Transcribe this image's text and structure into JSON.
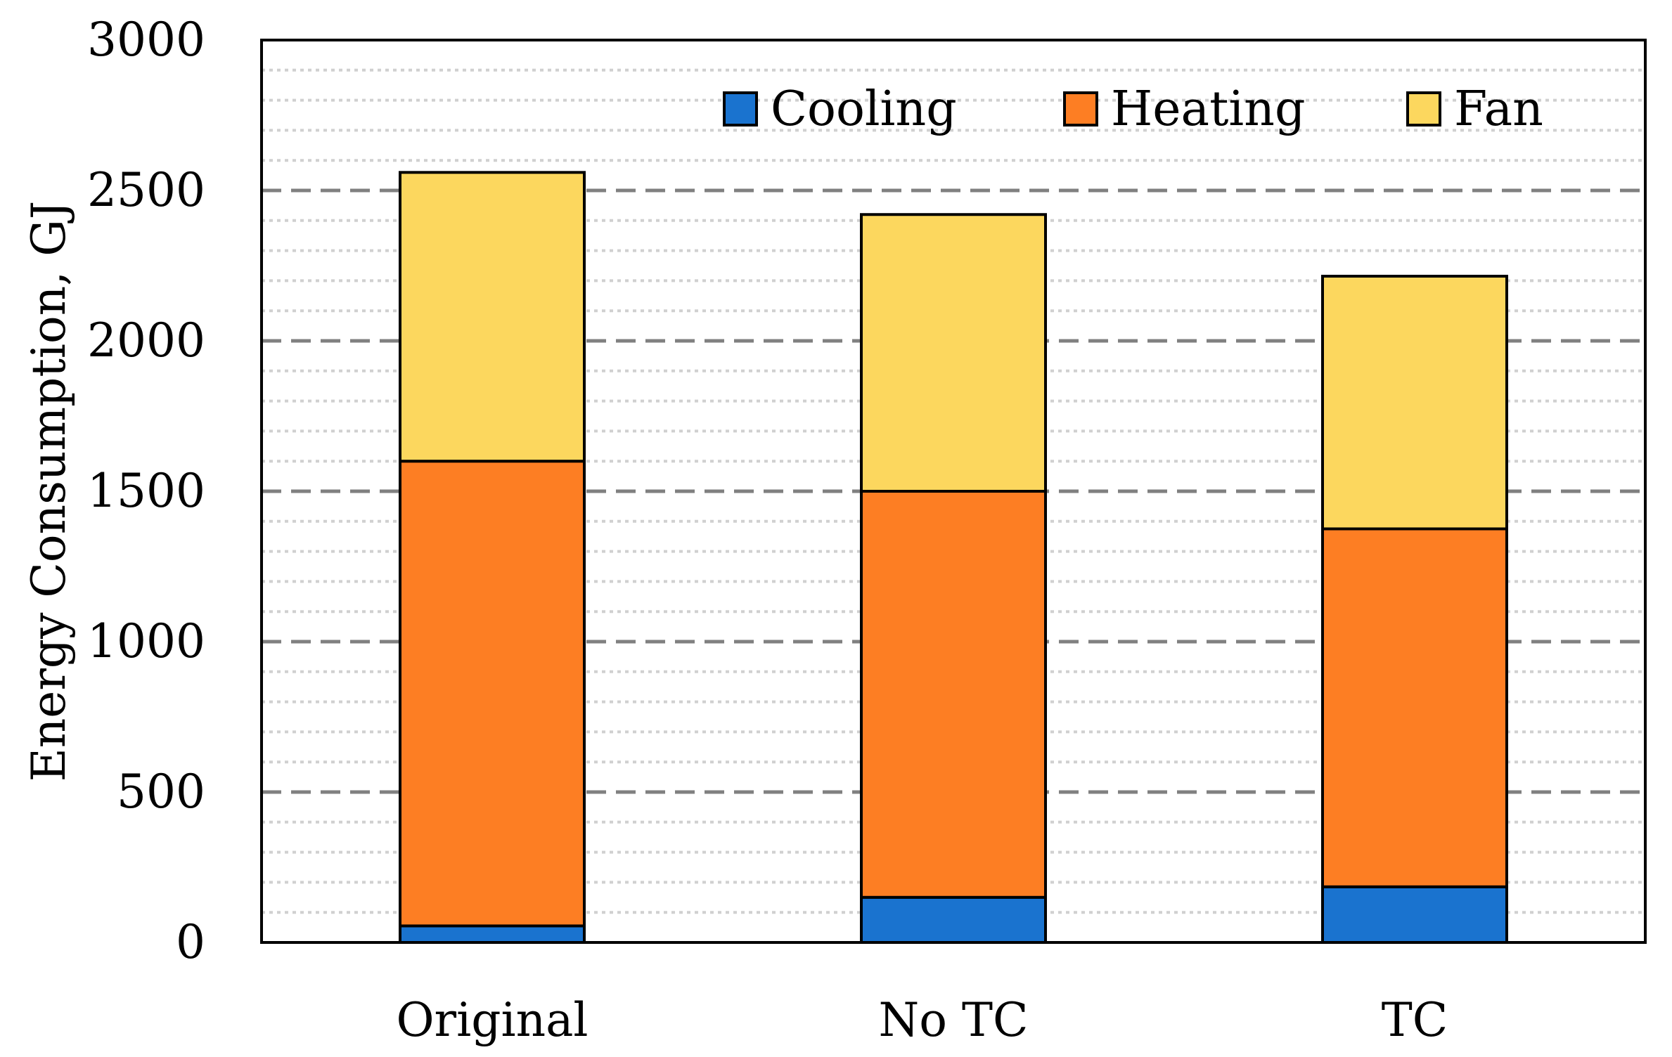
{
  "chart_data": {
    "type": "bar",
    "stacked": true,
    "categories": [
      "Original",
      "No TC",
      "TC"
    ],
    "series": [
      {
        "name": "Cooling",
        "color": "#1a73cf",
        "values": [
          55,
          150,
          185
        ]
      },
      {
        "name": "Heating",
        "color": "#fd7e23",
        "values": [
          1545,
          1350,
          1190
        ]
      },
      {
        "name": "Fan",
        "color": "#fcd75e",
        "values": [
          960,
          920,
          840
        ]
      }
    ],
    "title": "",
    "xlabel": "",
    "ylabel": "Energy Consumption, GJ",
    "ylim": [
      0,
      3000
    ],
    "yticks": [
      "0",
      "500",
      "1000",
      "1500",
      "2000",
      "2500",
      "3000"
    ],
    "grid": {
      "major": "dashed",
      "minor": "dotted"
    },
    "legend": {
      "position": "top-right",
      "orientation": "horizontal"
    }
  }
}
